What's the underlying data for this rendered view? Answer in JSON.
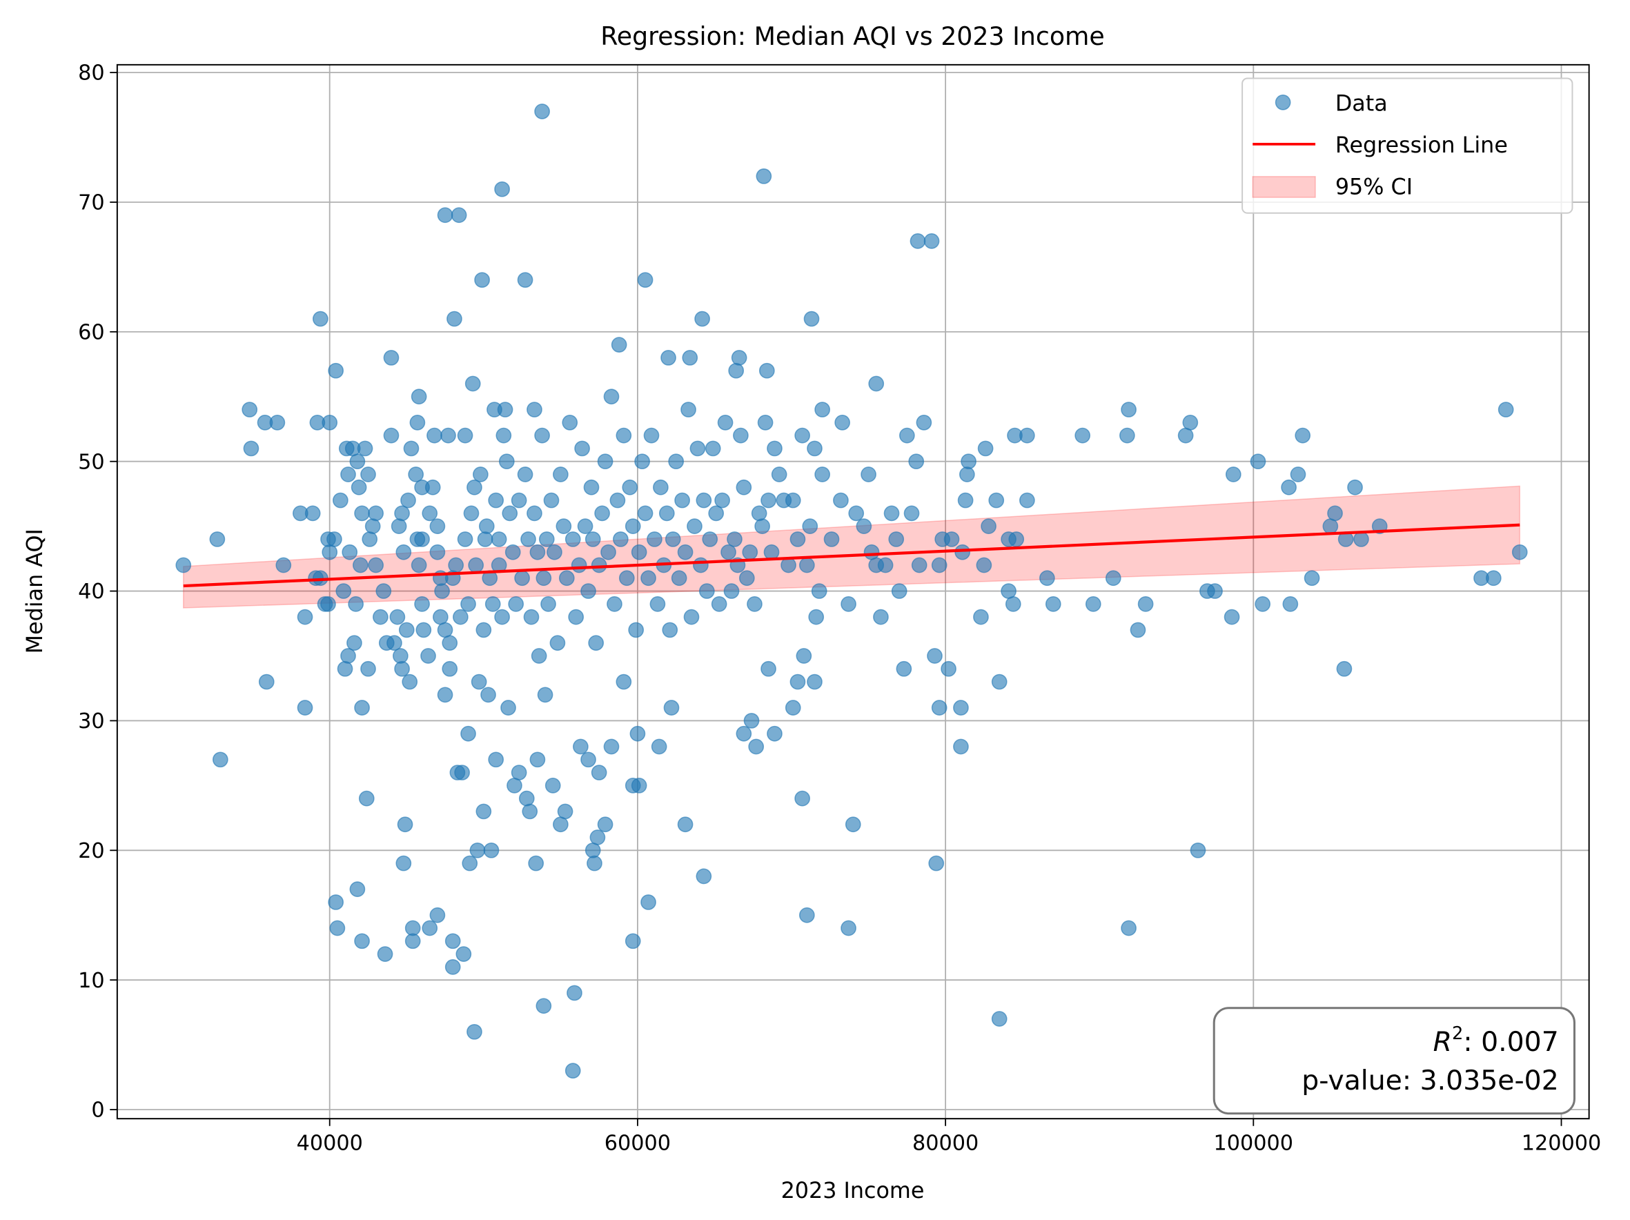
{
  "chart_data": {
    "type": "scatter",
    "title": "Regression: Median AQI vs 2023 Income",
    "xlabel": "2023 Income",
    "ylabel": "Median AQI",
    "xlim": [
      26200,
      121800
    ],
    "ylim": [
      -0.7,
      80.6
    ],
    "xticks": [
      40000,
      60000,
      80000,
      100000,
      120000
    ],
    "yticks": [
      0,
      10,
      20,
      30,
      40,
      50,
      60,
      70,
      80
    ],
    "grid": true,
    "legend_position": "top-right",
    "legend": [
      "Data",
      "Regression Line",
      "95% CI"
    ],
    "colors": {
      "points": "#1f77b4",
      "line": "#ff0000",
      "ci": "#ff9999"
    },
    "annotation": {
      "r2_label": "R",
      "r2_sup": "2",
      "r2_value": ": 0.007",
      "pvalue": "p-value: 3.035e-02"
    },
    "regression": {
      "x": [
        30500,
        117300
      ],
      "y": [
        40.4,
        45.1
      ]
    },
    "ci": {
      "x": [
        30500,
        117300
      ],
      "lower": [
        38.7,
        42.1
      ],
      "upper": [
        41.9,
        48.1
      ]
    },
    "points": [
      [
        30500,
        42
      ],
      [
        32700,
        44
      ],
      [
        32900,
        27
      ],
      [
        34800,
        54
      ],
      [
        34900,
        51
      ],
      [
        35800,
        53
      ],
      [
        35900,
        33
      ],
      [
        36600,
        53
      ],
      [
        37000,
        42
      ],
      [
        38100,
        46
      ],
      [
        38400,
        38
      ],
      [
        38400,
        31
      ],
      [
        38900,
        46
      ],
      [
        39100,
        41
      ],
      [
        39200,
        53
      ],
      [
        39400,
        61
      ],
      [
        39400,
        41
      ],
      [
        39700,
        39
      ],
      [
        39900,
        44
      ],
      [
        40000,
        43
      ],
      [
        39900,
        39
      ],
      [
        40000,
        53
      ],
      [
        40300,
        44
      ],
      [
        40400,
        57
      ],
      [
        40400,
        16
      ],
      [
        40500,
        14
      ],
      [
        40700,
        47
      ],
      [
        40900,
        40
      ],
      [
        41000,
        34
      ],
      [
        41100,
        51
      ],
      [
        41200,
        35
      ],
      [
        41200,
        49
      ],
      [
        41300,
        43
      ],
      [
        41500,
        51
      ],
      [
        41600,
        36
      ],
      [
        41700,
        39
      ],
      [
        41800,
        17
      ],
      [
        41800,
        50
      ],
      [
        41900,
        48
      ],
      [
        42000,
        42
      ],
      [
        42100,
        46
      ],
      [
        42100,
        13
      ],
      [
        42100,
        31
      ],
      [
        42300,
        51
      ],
      [
        42400,
        24
      ],
      [
        42500,
        34
      ],
      [
        42500,
        49
      ],
      [
        42600,
        44
      ],
      [
        42800,
        45
      ],
      [
        43000,
        46
      ],
      [
        43000,
        42
      ],
      [
        43300,
        38
      ],
      [
        43500,
        40
      ],
      [
        43600,
        12
      ],
      [
        43700,
        36
      ],
      [
        44000,
        58
      ],
      [
        44000,
        52
      ],
      [
        44200,
        36
      ],
      [
        44400,
        38
      ],
      [
        44500,
        45
      ],
      [
        44600,
        35
      ],
      [
        44700,
        34
      ],
      [
        44700,
        46
      ],
      [
        44800,
        43
      ],
      [
        44800,
        19
      ],
      [
        44900,
        22
      ],
      [
        45000,
        37
      ],
      [
        45100,
        47
      ],
      [
        45200,
        33
      ],
      [
        45300,
        51
      ],
      [
        45400,
        13
      ],
      [
        45400,
        14
      ],
      [
        45600,
        49
      ],
      [
        45700,
        44
      ],
      [
        45700,
        53
      ],
      [
        45800,
        42
      ],
      [
        45800,
        55
      ],
      [
        46000,
        48
      ],
      [
        46000,
        39
      ],
      [
        46100,
        37
      ],
      [
        46400,
        35
      ],
      [
        46500,
        14
      ],
      [
        46700,
        48
      ],
      [
        46800,
        52
      ],
      [
        47000,
        15
      ],
      [
        47000,
        43
      ],
      [
        47200,
        41
      ],
      [
        47200,
        38
      ],
      [
        47500,
        32
      ],
      [
        47500,
        69
      ],
      [
        47700,
        52
      ],
      [
        47800,
        36
      ],
      [
        47800,
        34
      ],
      [
        48000,
        11
      ],
      [
        48000,
        13
      ],
      [
        48100,
        61
      ],
      [
        48200,
        42
      ],
      [
        48300,
        26
      ],
      [
        48400,
        69
      ],
      [
        48600,
        26
      ],
      [
        48700,
        12
      ],
      [
        48800,
        52
      ],
      [
        49000,
        29
      ],
      [
        49100,
        19
      ],
      [
        49300,
        56
      ],
      [
        49400,
        6
      ],
      [
        49400,
        48
      ],
      [
        49600,
        20
      ],
      [
        49700,
        33
      ],
      [
        49900,
        64
      ],
      [
        50000,
        23
      ],
      [
        50100,
        44
      ],
      [
        50300,
        32
      ],
      [
        50500,
        20
      ],
      [
        50700,
        54
      ],
      [
        50800,
        27
      ],
      [
        51000,
        42
      ],
      [
        51200,
        71
      ],
      [
        51400,
        54
      ],
      [
        51600,
        31
      ],
      [
        52000,
        25
      ],
      [
        52300,
        26
      ],
      [
        52700,
        64
      ],
      [
        52800,
        24
      ],
      [
        53000,
        23
      ],
      [
        53300,
        54
      ],
      [
        53400,
        19
      ],
      [
        53500,
        27
      ],
      [
        53800,
        77
      ],
      [
        53900,
        8
      ],
      [
        54000,
        32
      ],
      [
        54500,
        25
      ],
      [
        55000,
        22
      ],
      [
        55300,
        23
      ],
      [
        55800,
        3
      ],
      [
        55900,
        9
      ],
      [
        56300,
        28
      ],
      [
        56800,
        27
      ],
      [
        57100,
        20
      ],
      [
        57200,
        19
      ],
      [
        57400,
        21
      ],
      [
        57500,
        26
      ],
      [
        57900,
        22
      ],
      [
        58300,
        28
      ],
      [
        58800,
        59
      ],
      [
        59100,
        33
      ],
      [
        59700,
        13
      ],
      [
        59700,
        25
      ],
      [
        60100,
        25
      ],
      [
        60000,
        29
      ],
      [
        60500,
        64
      ],
      [
        60700,
        16
      ],
      [
        61400,
        28
      ],
      [
        62000,
        58
      ],
      [
        62200,
        31
      ],
      [
        63100,
        22
      ],
      [
        63400,
        58
      ],
      [
        64200,
        61
      ],
      [
        64300,
        18
      ],
      [
        66400,
        57
      ],
      [
        66600,
        58
      ],
      [
        66900,
        29
      ],
      [
        67400,
        30
      ],
      [
        67700,
        28
      ],
      [
        68200,
        72
      ],
      [
        68400,
        57
      ],
      [
        68500,
        34
      ],
      [
        68900,
        29
      ],
      [
        70100,
        31
      ],
      [
        70400,
        33
      ],
      [
        70700,
        24
      ],
      [
        70800,
        35
      ],
      [
        71000,
        15
      ],
      [
        71300,
        61
      ],
      [
        71500,
        33
      ],
      [
        71600,
        38
      ],
      [
        72000,
        54
      ],
      [
        73300,
        53
      ],
      [
        73700,
        14
      ],
      [
        74000,
        22
      ],
      [
        75500,
        56
      ],
      [
        77300,
        34
      ],
      [
        78200,
        67
      ],
      [
        79100,
        67
      ],
      [
        79300,
        35
      ],
      [
        79400,
        19
      ],
      [
        79600,
        31
      ],
      [
        80200,
        34
      ],
      [
        80400,
        44
      ],
      [
        81000,
        31
      ],
      [
        81000,
        28
      ],
      [
        81400,
        49
      ],
      [
        82300,
        38
      ],
      [
        82600,
        51
      ],
      [
        82800,
        45
      ],
      [
        83500,
        33
      ],
      [
        83500,
        7
      ],
      [
        84100,
        40
      ],
      [
        84400,
        39
      ],
      [
        84500,
        52
      ],
      [
        85300,
        52
      ],
      [
        85300,
        47
      ],
      [
        86600,
        41
      ],
      [
        87000,
        39
      ],
      [
        88900,
        52
      ],
      [
        89600,
        39
      ],
      [
        90900,
        41
      ],
      [
        91800,
        52
      ],
      [
        91900,
        54
      ],
      [
        91900,
        14
      ],
      [
        92500,
        37
      ],
      [
        93000,
        39
      ],
      [
        95600,
        52
      ],
      [
        95900,
        53
      ],
      [
        96400,
        20
      ],
      [
        97000,
        40
      ],
      [
        97500,
        40
      ],
      [
        98600,
        38
      ],
      [
        98700,
        49
      ],
      [
        100300,
        50
      ],
      [
        100600,
        39
      ],
      [
        102300,
        48
      ],
      [
        102400,
        39
      ],
      [
        102900,
        49
      ],
      [
        103200,
        52
      ],
      [
        103800,
        41
      ],
      [
        105000,
        45
      ],
      [
        105300,
        46
      ],
      [
        105900,
        34
      ],
      [
        106000,
        44
      ],
      [
        106600,
        48
      ],
      [
        107000,
        44
      ],
      [
        108200,
        45
      ],
      [
        114800,
        41
      ],
      [
        115600,
        41
      ],
      [
        116400,
        54
      ],
      [
        117300,
        43
      ],
      [
        46000,
        44
      ],
      [
        46500,
        46
      ],
      [
        47000,
        45
      ],
      [
        47300,
        40
      ],
      [
        47500,
        37
      ],
      [
        48000,
        41
      ],
      [
        48500,
        38
      ],
      [
        48800,
        44
      ],
      [
        49000,
        39
      ],
      [
        49200,
        46
      ],
      [
        49500,
        42
      ],
      [
        49800,
        49
      ],
      [
        50000,
        37
      ],
      [
        50200,
        45
      ],
      [
        50400,
        41
      ],
      [
        50600,
        39
      ],
      [
        50800,
        47
      ],
      [
        51000,
        44
      ],
      [
        51200,
        38
      ],
      [
        51300,
        52
      ],
      [
        51500,
        50
      ],
      [
        51700,
        46
      ],
      [
        51900,
        43
      ],
      [
        52100,
        39
      ],
      [
        52300,
        47
      ],
      [
        52500,
        41
      ],
      [
        52700,
        49
      ],
      [
        52900,
        44
      ],
      [
        53100,
        38
      ],
      [
        53300,
        46
      ],
      [
        53500,
        43
      ],
      [
        53600,
        35
      ],
      [
        53800,
        52
      ],
      [
        53900,
        41
      ],
      [
        54100,
        44
      ],
      [
        54200,
        39
      ],
      [
        54400,
        47
      ],
      [
        54600,
        43
      ],
      [
        54800,
        36
      ],
      [
        55000,
        49
      ],
      [
        55200,
        45
      ],
      [
        55400,
        41
      ],
      [
        55600,
        53
      ],
      [
        55800,
        44
      ],
      [
        56000,
        38
      ],
      [
        56200,
        42
      ],
      [
        56400,
        51
      ],
      [
        56600,
        45
      ],
      [
        56800,
        40
      ],
      [
        57000,
        48
      ],
      [
        57100,
        44
      ],
      [
        57300,
        36
      ],
      [
        57500,
        42
      ],
      [
        57700,
        46
      ],
      [
        57900,
        50
      ],
      [
        58100,
        43
      ],
      [
        58300,
        55
      ],
      [
        58500,
        39
      ],
      [
        58700,
        47
      ],
      [
        58900,
        44
      ],
      [
        59100,
        52
      ],
      [
        59300,
        41
      ],
      [
        59500,
        48
      ],
      [
        59700,
        45
      ],
      [
        59900,
        37
      ],
      [
        60100,
        43
      ],
      [
        60300,
        50
      ],
      [
        60500,
        46
      ],
      [
        60700,
        41
      ],
      [
        60900,
        52
      ],
      [
        61100,
        44
      ],
      [
        61300,
        39
      ],
      [
        61500,
        48
      ],
      [
        61700,
        42
      ],
      [
        61900,
        46
      ],
      [
        62100,
        37
      ],
      [
        62300,
        44
      ],
      [
        62500,
        50
      ],
      [
        62700,
        41
      ],
      [
        62900,
        47
      ],
      [
        63100,
        43
      ],
      [
        63300,
        54
      ],
      [
        63500,
        38
      ],
      [
        63700,
        45
      ],
      [
        63900,
        51
      ],
      [
        64100,
        42
      ],
      [
        64300,
        47
      ],
      [
        64500,
        40
      ],
      [
        64700,
        44
      ],
      [
        64900,
        51
      ],
      [
        65100,
        46
      ],
      [
        65300,
        39
      ],
      [
        65500,
        47
      ],
      [
        65700,
        53
      ],
      [
        65900,
        43
      ],
      [
        66100,
        40
      ],
      [
        66300,
        44
      ],
      [
        66500,
        42
      ],
      [
        66700,
        52
      ],
      [
        66900,
        48
      ],
      [
        67100,
        41
      ],
      [
        67300,
        43
      ],
      [
        67600,
        39
      ],
      [
        67900,
        46
      ],
      [
        68100,
        45
      ],
      [
        68300,
        53
      ],
      [
        68500,
        47
      ],
      [
        68700,
        43
      ],
      [
        68900,
        51
      ],
      [
        69200,
        49
      ],
      [
        69500,
        47
      ],
      [
        69800,
        42
      ],
      [
        70100,
        47
      ],
      [
        70400,
        44
      ],
      [
        70700,
        52
      ],
      [
        71000,
        42
      ],
      [
        71200,
        45
      ],
      [
        71500,
        51
      ],
      [
        71800,
        40
      ],
      [
        72000,
        49
      ],
      [
        72600,
        44
      ],
      [
        73200,
        47
      ],
      [
        73700,
        39
      ],
      [
        74200,
        46
      ],
      [
        74700,
        45
      ],
      [
        75000,
        49
      ],
      [
        75200,
        43
      ],
      [
        75500,
        42
      ],
      [
        75800,
        38
      ],
      [
        76100,
        42
      ],
      [
        76500,
        46
      ],
      [
        76800,
        44
      ],
      [
        77000,
        40
      ],
      [
        77500,
        52
      ],
      [
        77800,
        46
      ],
      [
        78100,
        50
      ],
      [
        78300,
        42
      ],
      [
        78600,
        53
      ],
      [
        79800,
        44
      ],
      [
        79600,
        42
      ],
      [
        81100,
        43
      ],
      [
        81500,
        50
      ],
      [
        81300,
        47
      ],
      [
        82500,
        42
      ],
      [
        83300,
        47
      ],
      [
        84100,
        44
      ],
      [
        84600,
        44
      ]
    ]
  }
}
